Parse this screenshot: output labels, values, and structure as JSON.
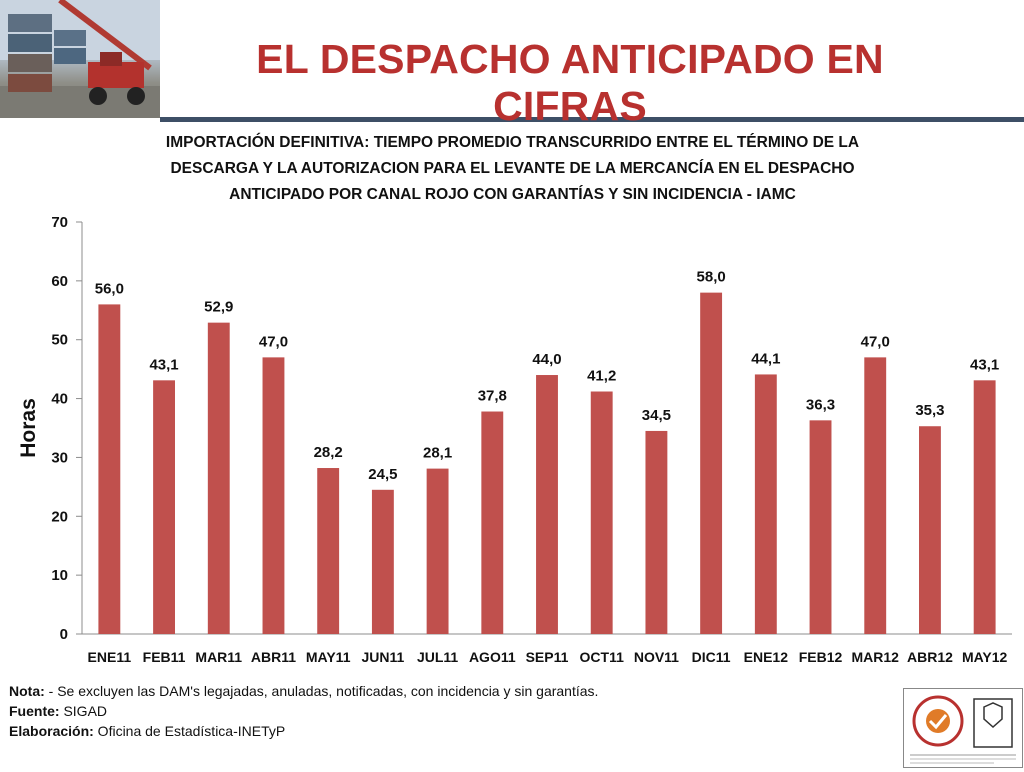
{
  "header": {
    "title": "EL DESPACHO ANTICIPADO EN CIFRAS"
  },
  "subtitle_lines": [
    "IMPORTACIÓN DEFINITIVA: TIEMPO PROMEDIO TRANSCURRIDO ENTRE EL TÉRMINO DE LA",
    "DESCARGA Y LA AUTORIZACION PARA EL LEVANTE DE LA MERCANCÍA EN EL DESPACHO",
    "ANTICIPADO POR CANAL ROJO  CON GARANTÍAS Y SIN INCIDENCIA - IAMC"
  ],
  "chart_data": {
    "type": "bar",
    "title": "IMPORTACIÓN DEFINITIVA: TIEMPO PROMEDIO TRANSCURRIDO ENTRE EL TÉRMINO DE LA DESCARGA Y LA AUTORIZACION PARA EL LEVANTE DE LA MERCANCÍA EN EL DESPACHO ANTICIPADO POR CANAL ROJO  CON GARANTÍAS Y SIN INCIDENCIA - IAMC",
    "xlabel": "",
    "ylabel": "Horas",
    "ylim": [
      0,
      70
    ],
    "yticks": [
      0,
      10,
      20,
      30,
      40,
      50,
      60,
      70
    ],
    "grid": false,
    "categories": [
      "ENE11",
      "FEB11",
      "MAR11",
      "ABR11",
      "MAY11",
      "JUN11",
      "JUL11",
      "AGO11",
      "SEP11",
      "OCT11",
      "NOV11",
      "DIC11",
      "ENE12",
      "FEB12",
      "MAR12",
      "ABR12",
      "MAY12"
    ],
    "values": [
      56.0,
      43.1,
      52.9,
      47.0,
      28.2,
      24.5,
      28.1,
      37.8,
      44.0,
      41.2,
      34.5,
      58.0,
      44.1,
      36.3,
      47.0,
      35.3,
      43.1
    ],
    "value_labels": [
      "56,0",
      "43,1",
      "52,9",
      "47,0",
      "28,2",
      "24,5",
      "28,1",
      "37,8",
      "44,0",
      "41,2",
      "34,5",
      "58,0",
      "44,1",
      "36,3",
      "47,0",
      "35,3",
      "43,1"
    ],
    "bar_color": "#c0504d"
  },
  "notes": {
    "nota_label": "Nota:",
    "nota_text": " - Se excluyen las DAM's legajadas, anuladas, notificadas, con incidencia y sin garantías.",
    "fuente_label": "Fuente:",
    "fuente_text": " SIGAD",
    "elaboracion_label": "Elaboración:",
    "elaboracion_text": " Oficina de Estadística-INETyP"
  },
  "colors": {
    "title_red": "#b8312f",
    "rule_navy": "#3d4f66"
  }
}
